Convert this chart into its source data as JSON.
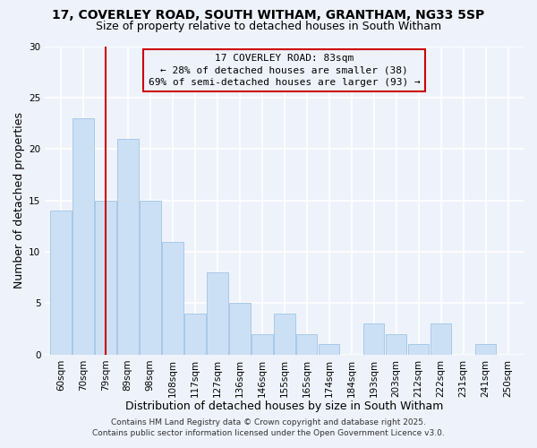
{
  "title1": "17, COVERLEY ROAD, SOUTH WITHAM, GRANTHAM, NG33 5SP",
  "title2": "Size of property relative to detached houses in South Witham",
  "xlabel": "Distribution of detached houses by size in South Witham",
  "ylabel": "Number of detached properties",
  "bar_color": "#cce0f5",
  "bar_edge_color": "#a8c8e8",
  "bin_labels": [
    "60sqm",
    "70sqm",
    "79sqm",
    "89sqm",
    "98sqm",
    "108sqm",
    "117sqm",
    "127sqm",
    "136sqm",
    "146sqm",
    "155sqm",
    "165sqm",
    "174sqm",
    "184sqm",
    "193sqm",
    "203sqm",
    "212sqm",
    "222sqm",
    "231sqm",
    "241sqm",
    "250sqm"
  ],
  "bar_heights": [
    14,
    23,
    15,
    21,
    15,
    11,
    4,
    8,
    5,
    2,
    4,
    2,
    1,
    0,
    3,
    2,
    1,
    3,
    0,
    1,
    0
  ],
  "ylim": [
    0,
    30
  ],
  "yticks": [
    0,
    5,
    10,
    15,
    20,
    25,
    30
  ],
  "vline_x_index": 2,
  "vline_color": "#cc0000",
  "annotation_title": "17 COVERLEY ROAD: 83sqm",
  "annotation_line2": "← 28% of detached houses are smaller (38)",
  "annotation_line3": "69% of semi-detached houses are larger (93) →",
  "footer1": "Contains HM Land Registry data © Crown copyright and database right 2025.",
  "footer2": "Contains public sector information licensed under the Open Government Licence v3.0.",
  "background_color": "#eef3fb",
  "grid_color": "#ffffff",
  "title_fontsize": 10,
  "subtitle_fontsize": 9,
  "axis_label_fontsize": 9,
  "tick_fontsize": 7.5,
  "annotation_fontsize": 8,
  "footer_fontsize": 6.5
}
